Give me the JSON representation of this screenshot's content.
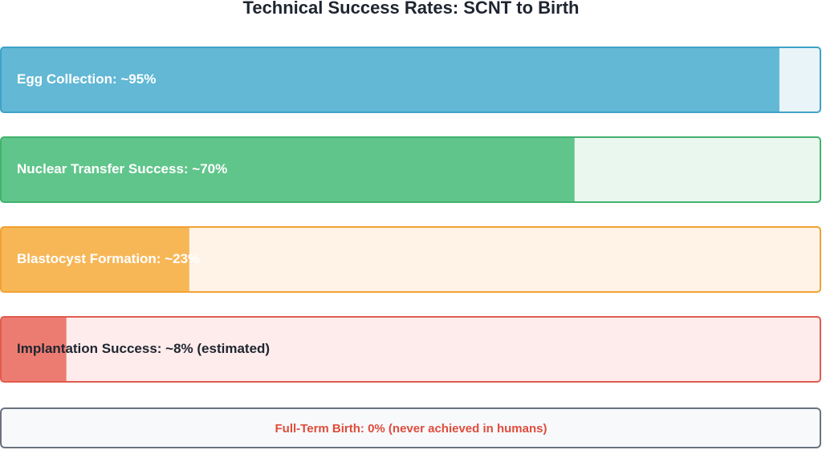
{
  "chart_data": {
    "type": "bar",
    "orientation": "horizontal",
    "title": "Technical Success Rates: SCNT to Birth",
    "categories": [
      "Egg Collection: ~95%",
      "Nuclear Transfer Success: ~70%",
      "Blastocyst Formation: ~23%",
      "Implantation Success: ~8% (estimated)"
    ],
    "values": [
      95,
      70,
      23,
      8
    ],
    "colors": [
      "#62b8d5",
      "#60c58b",
      "#f7b757",
      "#ec7c71"
    ],
    "border_colors": [
      "#3fa2c6",
      "#41b26d",
      "#f1a233",
      "#e05b4f"
    ],
    "track_colors": [
      "#e9f4f9",
      "#e9f7ee",
      "#fef3e6",
      "#fdeceb"
    ],
    "label_colors": [
      "#ffffff",
      "#ffffff",
      "#ffffff",
      "#1f2530"
    ],
    "xlim": [
      0,
      100
    ],
    "footnote": "Full-Term Birth: 0% (never achieved in humans)"
  }
}
